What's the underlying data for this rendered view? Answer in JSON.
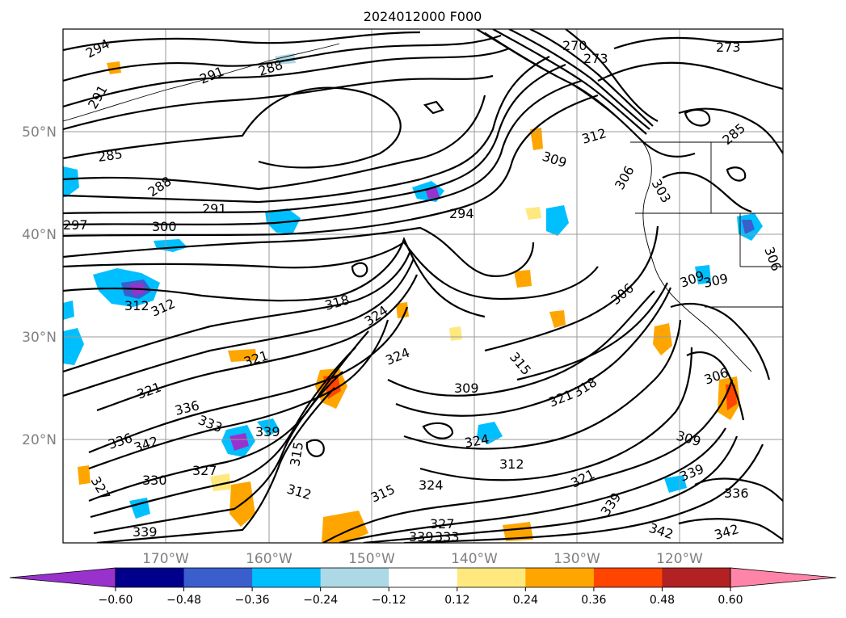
{
  "map": {
    "title": "2024012000 F000",
    "longitude_labels": [
      "170°W",
      "160°W",
      "150°W",
      "140°W",
      "130°W",
      "120°W"
    ],
    "latitude_labels": [
      "20°N",
      "30°N",
      "40°N",
      "50°N"
    ],
    "contour_labels": [
      "294",
      "291",
      "288",
      "291",
      "285",
      "288",
      "291",
      "297",
      "300",
      "294",
      "270",
      "273",
      "273",
      "309",
      "312",
      "306",
      "303",
      "285",
      "312",
      "312",
      "318",
      "324",
      "324",
      "321",
      "315",
      "309",
      "321",
      "318",
      "321",
      "336",
      "333",
      "339",
      "342",
      "327",
      "330",
      "339",
      "312",
      "315",
      "324",
      "327",
      "333",
      "339",
      "324",
      "312",
      "309",
      "306",
      "309",
      "306",
      "309",
      "306",
      "339",
      "336",
      "342",
      "342",
      "315",
      "321",
      "339",
      "327",
      "336"
    ],
    "colorbar": {
      "tick_labels": [
        "−0.60",
        "−0.48",
        "−0.36",
        "−0.24",
        "−0.12",
        "0.12",
        "0.24",
        "0.36",
        "0.48",
        "0.60"
      ],
      "colors": [
        "#9932cc",
        "#00008b",
        "#3a5fcd",
        "#00bfff",
        "#add8e6",
        "#ffffff",
        "#ffe97f",
        "#ffa500",
        "#ff4500",
        "#b22222",
        "#ff85a8"
      ]
    },
    "colors": {
      "contour": "#000000",
      "grid": "#9a9a9a",
      "tick_label": "#808080"
    }
  }
}
